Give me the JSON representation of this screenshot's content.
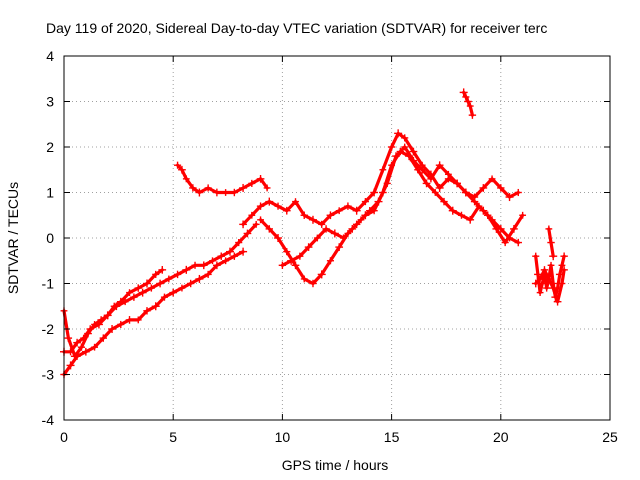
{
  "chart_data": {
    "type": "scatter",
    "title": "Day 119 of 2020, Sidereal Day-to-day VTEC variation (SDTVAR) for receiver terc",
    "xlabel": "GPS time / hours",
    "ylabel": "SDTVAR / TECUs",
    "xlim": [
      0,
      25
    ],
    "ylim": [
      -4,
      4
    ],
    "xticks": [
      0,
      5,
      10,
      15,
      20,
      25
    ],
    "yticks": [
      -4,
      -3,
      -2,
      -1,
      0,
      1,
      2,
      3,
      4
    ],
    "xtick_labels": [
      "0",
      "5",
      "10",
      "15",
      "20",
      "25"
    ],
    "ytick_labels": [
      "-4",
      "-3",
      "-2",
      "-1",
      "0",
      "1",
      "2",
      "3",
      "4"
    ],
    "grid": true,
    "marker": "+",
    "color": "#ff0000",
    "series": [
      {
        "name": "trace-1",
        "x": [
          0.0,
          0.2,
          0.5,
          0.8,
          1.1,
          1.4,
          1.7,
          2.0,
          2.3,
          2.6,
          3.0,
          3.4,
          3.8,
          4.2,
          4.5
        ],
        "y": [
          -1.6,
          -2.2,
          -2.6,
          -2.4,
          -2.1,
          -1.9,
          -1.8,
          -1.7,
          -1.5,
          -1.4,
          -1.2,
          -1.1,
          -1.0,
          -0.8,
          -0.7
        ]
      },
      {
        "name": "trace-2",
        "x": [
          0.0,
          0.3,
          0.6,
          1.0,
          1.4,
          1.8,
          2.2,
          2.6,
          3.0,
          3.4,
          3.8,
          4.2,
          4.6,
          5.0,
          5.4,
          5.8,
          6.2,
          6.6,
          7.0,
          7.4,
          7.8,
          8.2
        ],
        "y": [
          -3.0,
          -2.8,
          -2.6,
          -2.5,
          -2.4,
          -2.2,
          -2.0,
          -1.9,
          -1.8,
          -1.8,
          -1.6,
          -1.5,
          -1.3,
          -1.2,
          -1.1,
          -1.0,
          -0.9,
          -0.8,
          -0.6,
          -0.5,
          -0.4,
          -0.3
        ]
      },
      {
        "name": "trace-3",
        "x": [
          0.0,
          0.3,
          0.6,
          0.9,
          1.2,
          1.6,
          2.0,
          2.4,
          2.8,
          3.2,
          3.6,
          4.0,
          4.4,
          4.8,
          5.2,
          5.6,
          6.0,
          6.4,
          6.8,
          7.2,
          7.6,
          8.0,
          8.4,
          8.8
        ],
        "y": [
          -2.5,
          -2.5,
          -2.3,
          -2.2,
          -2.0,
          -1.9,
          -1.7,
          -1.5,
          -1.4,
          -1.3,
          -1.2,
          -1.1,
          -1.0,
          -0.9,
          -0.8,
          -0.7,
          -0.6,
          -0.6,
          -0.5,
          -0.4,
          -0.3,
          -0.1,
          0.1,
          0.3
        ]
      },
      {
        "name": "trace-4",
        "x": [
          5.2,
          5.4,
          5.6,
          5.9,
          6.2,
          6.6,
          7.0,
          7.4,
          7.8,
          8.2,
          8.6,
          9.0,
          9.3
        ],
        "y": [
          1.6,
          1.5,
          1.3,
          1.1,
          1.0,
          1.1,
          1.0,
          1.0,
          1.0,
          1.1,
          1.2,
          1.3,
          1.1
        ]
      },
      {
        "name": "trace-5",
        "x": [
          8.2,
          8.6,
          9.0,
          9.4,
          9.8,
          10.2,
          10.6,
          11.0,
          11.4,
          11.8,
          12.2,
          12.6,
          13.0,
          13.4,
          13.8,
          14.2,
          14.6,
          15.0,
          15.3,
          15.6,
          16.0,
          16.4,
          16.8,
          17.2,
          17.6,
          18.0,
          18.4,
          18.8,
          19.2,
          19.6,
          20.0,
          20.4,
          20.8
        ],
        "y": [
          0.3,
          0.5,
          0.7,
          0.8,
          0.7,
          0.6,
          0.8,
          0.5,
          0.4,
          0.3,
          0.5,
          0.6,
          0.7,
          0.6,
          0.8,
          1.0,
          1.5,
          2.0,
          2.3,
          2.2,
          1.9,
          1.6,
          1.4,
          1.1,
          1.3,
          1.2,
          1.0,
          0.8,
          0.6,
          0.4,
          0.2,
          0.0,
          -0.1
        ]
      },
      {
        "name": "trace-6",
        "x": [
          9.0,
          9.4,
          9.8,
          10.2,
          10.6,
          11.0,
          11.4,
          11.8,
          12.2,
          12.6,
          13.0,
          13.4,
          13.8,
          14.2,
          14.6,
          15.0,
          15.4,
          15.8,
          16.2,
          16.6,
          17.0,
          17.4,
          17.8,
          18.2,
          18.6,
          19.0,
          19.4,
          19.8,
          20.2,
          20.6,
          21.0
        ],
        "y": [
          0.4,
          0.2,
          0.0,
          -0.3,
          -0.6,
          -0.9,
          -1.0,
          -0.8,
          -0.5,
          -0.2,
          0.1,
          0.3,
          0.5,
          0.6,
          1.0,
          1.6,
          1.9,
          1.8,
          1.5,
          1.2,
          1.0,
          0.8,
          0.6,
          0.5,
          0.4,
          0.7,
          0.5,
          0.2,
          -0.1,
          0.2,
          0.5
        ]
      },
      {
        "name": "trace-7",
        "x": [
          10.0,
          10.4,
          10.8,
          11.2,
          11.6,
          12.0,
          12.4,
          12.8,
          13.2,
          13.6,
          14.0,
          14.4,
          14.8,
          15.2,
          15.6,
          16.0,
          16.4,
          16.8,
          17.2,
          17.6,
          18.0,
          18.4,
          18.8,
          19.2,
          19.6,
          20.0,
          20.4,
          20.8
        ],
        "y": [
          -0.6,
          -0.5,
          -0.4,
          -0.2,
          0.0,
          0.2,
          0.1,
          0.0,
          0.2,
          0.4,
          0.6,
          0.8,
          1.2,
          1.8,
          2.0,
          1.7,
          1.5,
          1.3,
          1.6,
          1.4,
          1.2,
          1.0,
          0.9,
          1.1,
          1.3,
          1.1,
          0.9,
          1.0
        ]
      },
      {
        "name": "trace-8",
        "x": [
          18.3,
          18.4,
          18.5,
          18.6,
          18.7
        ],
        "y": [
          3.2,
          3.1,
          3.0,
          2.9,
          2.7
        ]
      },
      {
        "name": "trace-9",
        "x": [
          21.6,
          21.7,
          21.8,
          21.9,
          22.0,
          22.1,
          22.2,
          22.3,
          22.4,
          22.5,
          22.6,
          22.7,
          22.8,
          22.9
        ],
        "y": [
          -0.4,
          -0.8,
          -1.2,
          -1.0,
          -0.8,
          -1.1,
          -0.9,
          -0.6,
          -1.0,
          -1.3,
          -1.1,
          -0.8,
          -0.6,
          -0.4
        ]
      },
      {
        "name": "trace-10",
        "x": [
          21.6,
          21.8,
          22.0,
          22.2,
          22.4,
          22.6,
          22.8,
          22.9
        ],
        "y": [
          -1.0,
          -0.9,
          -0.7,
          -0.9,
          -1.1,
          -1.4,
          -1.0,
          -0.7
        ]
      },
      {
        "name": "trace-11",
        "x": [
          22.2,
          22.3,
          22.4
        ],
        "y": [
          0.2,
          -0.1,
          -0.4
        ]
      }
    ]
  }
}
